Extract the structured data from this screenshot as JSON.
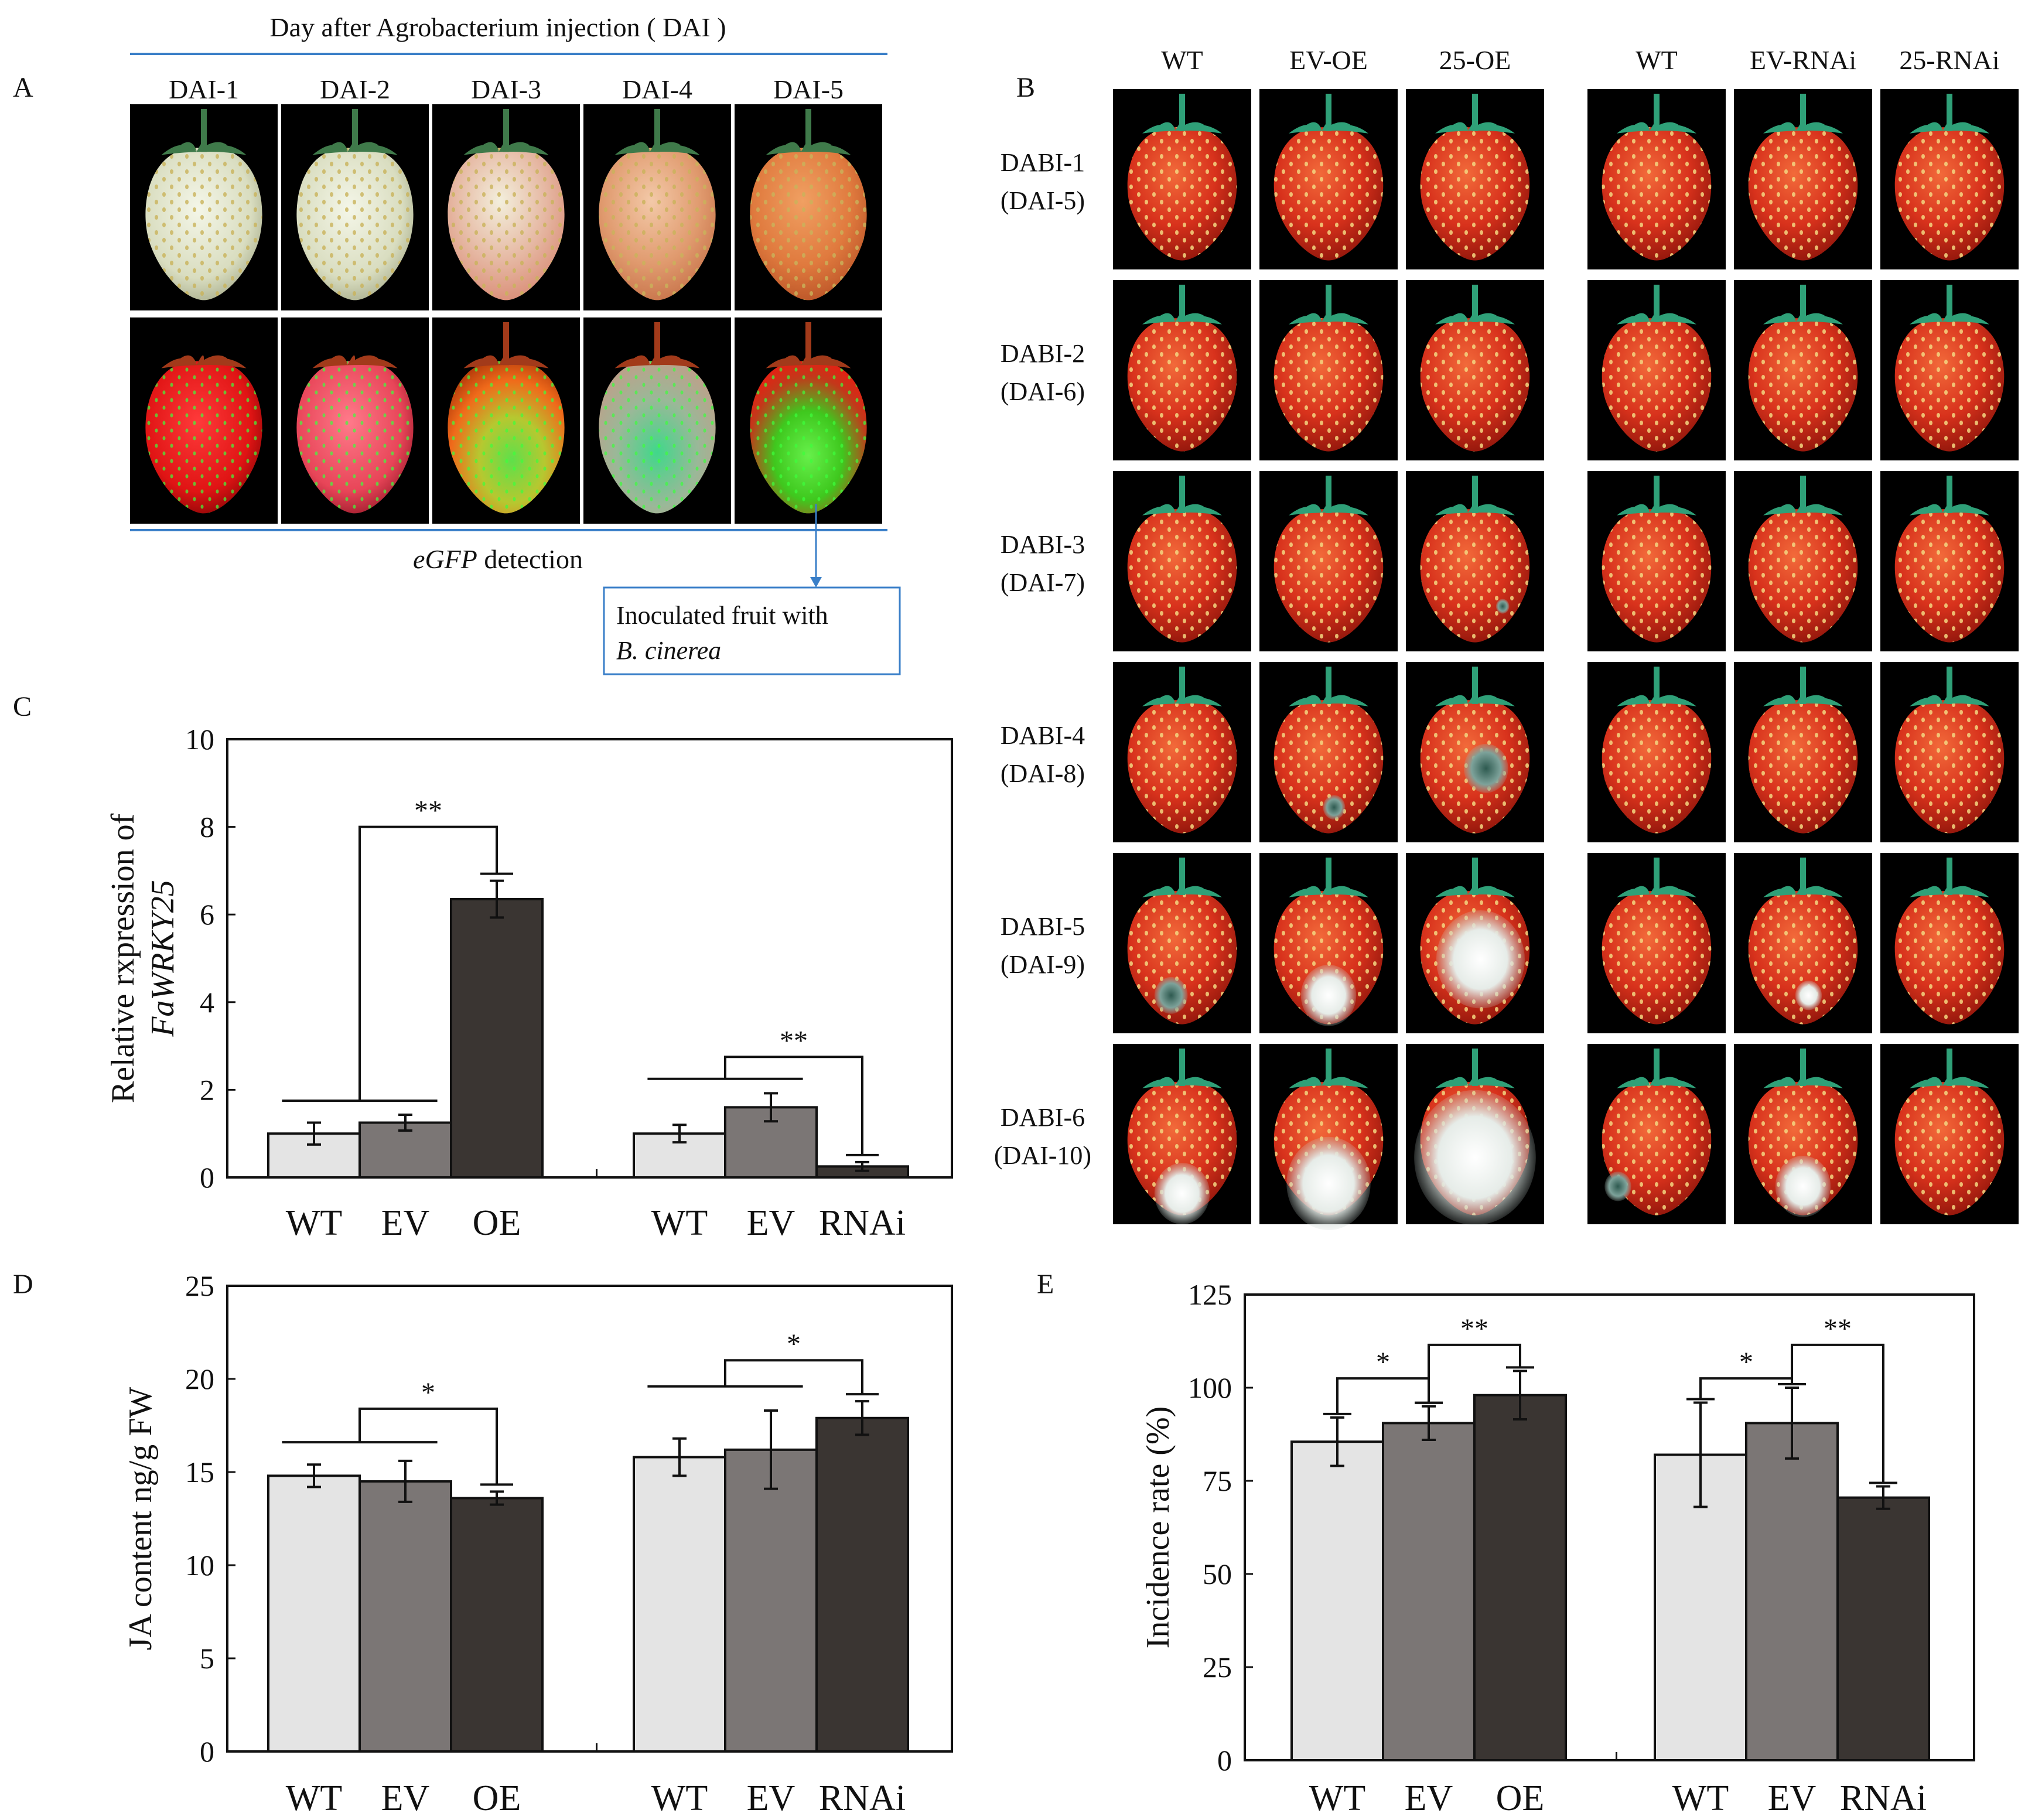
{
  "panelA": {
    "letter": "A",
    "title": "Day after Agrobacterium injection ( DAI )",
    "columns": [
      "DAI-1",
      "DAI-2",
      "DAI-3",
      "DAI-4",
      "DAI-5"
    ],
    "detection_prefix": "eGFP",
    "detection_suffix": " detection",
    "callout_line1": "Inoculated fruit with",
    "callout_line2": "B. cinerea"
  },
  "panelB": {
    "letter": "B",
    "columns": [
      "WT",
      "EV-OE",
      "25-OE",
      "WT",
      "EV-RNAi",
      "25-RNAi"
    ],
    "rows": [
      {
        "top": "DABI-1",
        "bottom": "(DAI-5)"
      },
      {
        "top": "DABI-2",
        "bottom": "(DAI-6)"
      },
      {
        "top": "DABI-3",
        "bottom": "(DAI-7)"
      },
      {
        "top": "DABI-4",
        "bottom": "(DAI-8)"
      },
      {
        "top": "DABI-5",
        "bottom": "(DAI-9)"
      },
      {
        "top": "DABI-6",
        "bottom": "(DAI-10)"
      }
    ]
  },
  "colors": {
    "WT": "#e4e4e4",
    "EV": "#7b7675",
    "treated": "#3a3532",
    "line_blue": "#3a7fc8"
  },
  "chart_data": [
    {
      "panel": "C",
      "type": "bar",
      "title": "",
      "ylabel_line1": "Relative rxpression of",
      "ylabel_line2": "FaWRKY25",
      "ylim": [
        0,
        10
      ],
      "yticks": [
        0,
        2,
        4,
        6,
        8,
        10
      ],
      "groups": [
        {
          "categories": [
            "WT",
            "EV",
            "OE"
          ],
          "values": [
            1.0,
            1.25,
            6.35
          ],
          "errors": [
            0.25,
            0.18,
            0.42
          ]
        },
        {
          "categories": [
            "WT",
            "EV",
            "RNAi"
          ],
          "values": [
            1.0,
            1.6,
            0.25
          ],
          "errors": [
            0.2,
            0.32,
            0.1
          ]
        }
      ],
      "significance": [
        "**",
        "**"
      ]
    },
    {
      "panel": "D",
      "type": "bar",
      "title": "",
      "ylabel": "JA content  ng/g FW",
      "ylim": [
        0,
        25
      ],
      "yticks": [
        0,
        5,
        10,
        15,
        20,
        25
      ],
      "groups": [
        {
          "categories": [
            "WT",
            "EV",
            "OE"
          ],
          "values": [
            14.8,
            14.5,
            13.6
          ],
          "errors": [
            0.6,
            1.1,
            0.35
          ]
        },
        {
          "categories": [
            "WT",
            "EV",
            "RNAi"
          ],
          "values": [
            15.8,
            16.2,
            17.9
          ],
          "errors": [
            1.0,
            2.1,
            0.9
          ]
        }
      ],
      "significance": [
        "*",
        "*"
      ]
    },
    {
      "panel": "E",
      "type": "bar",
      "title": "",
      "ylabel": "Incidence rate (%)",
      "ylim": [
        0,
        125
      ],
      "yticks": [
        0,
        25,
        50,
        75,
        100,
        125
      ],
      "groups": [
        {
          "categories": [
            "WT",
            "EV",
            "OE"
          ],
          "values": [
            85.5,
            90.5,
            98.0
          ],
          "errors": [
            6.5,
            4.5,
            6.5
          ]
        },
        {
          "categories": [
            "WT",
            "EV",
            "RNAi"
          ],
          "values": [
            82.0,
            90.5,
            70.5
          ],
          "errors": [
            14.0,
            9.5,
            3.0
          ]
        }
      ],
      "significance": [
        "*",
        "**",
        "*",
        "**"
      ]
    }
  ]
}
